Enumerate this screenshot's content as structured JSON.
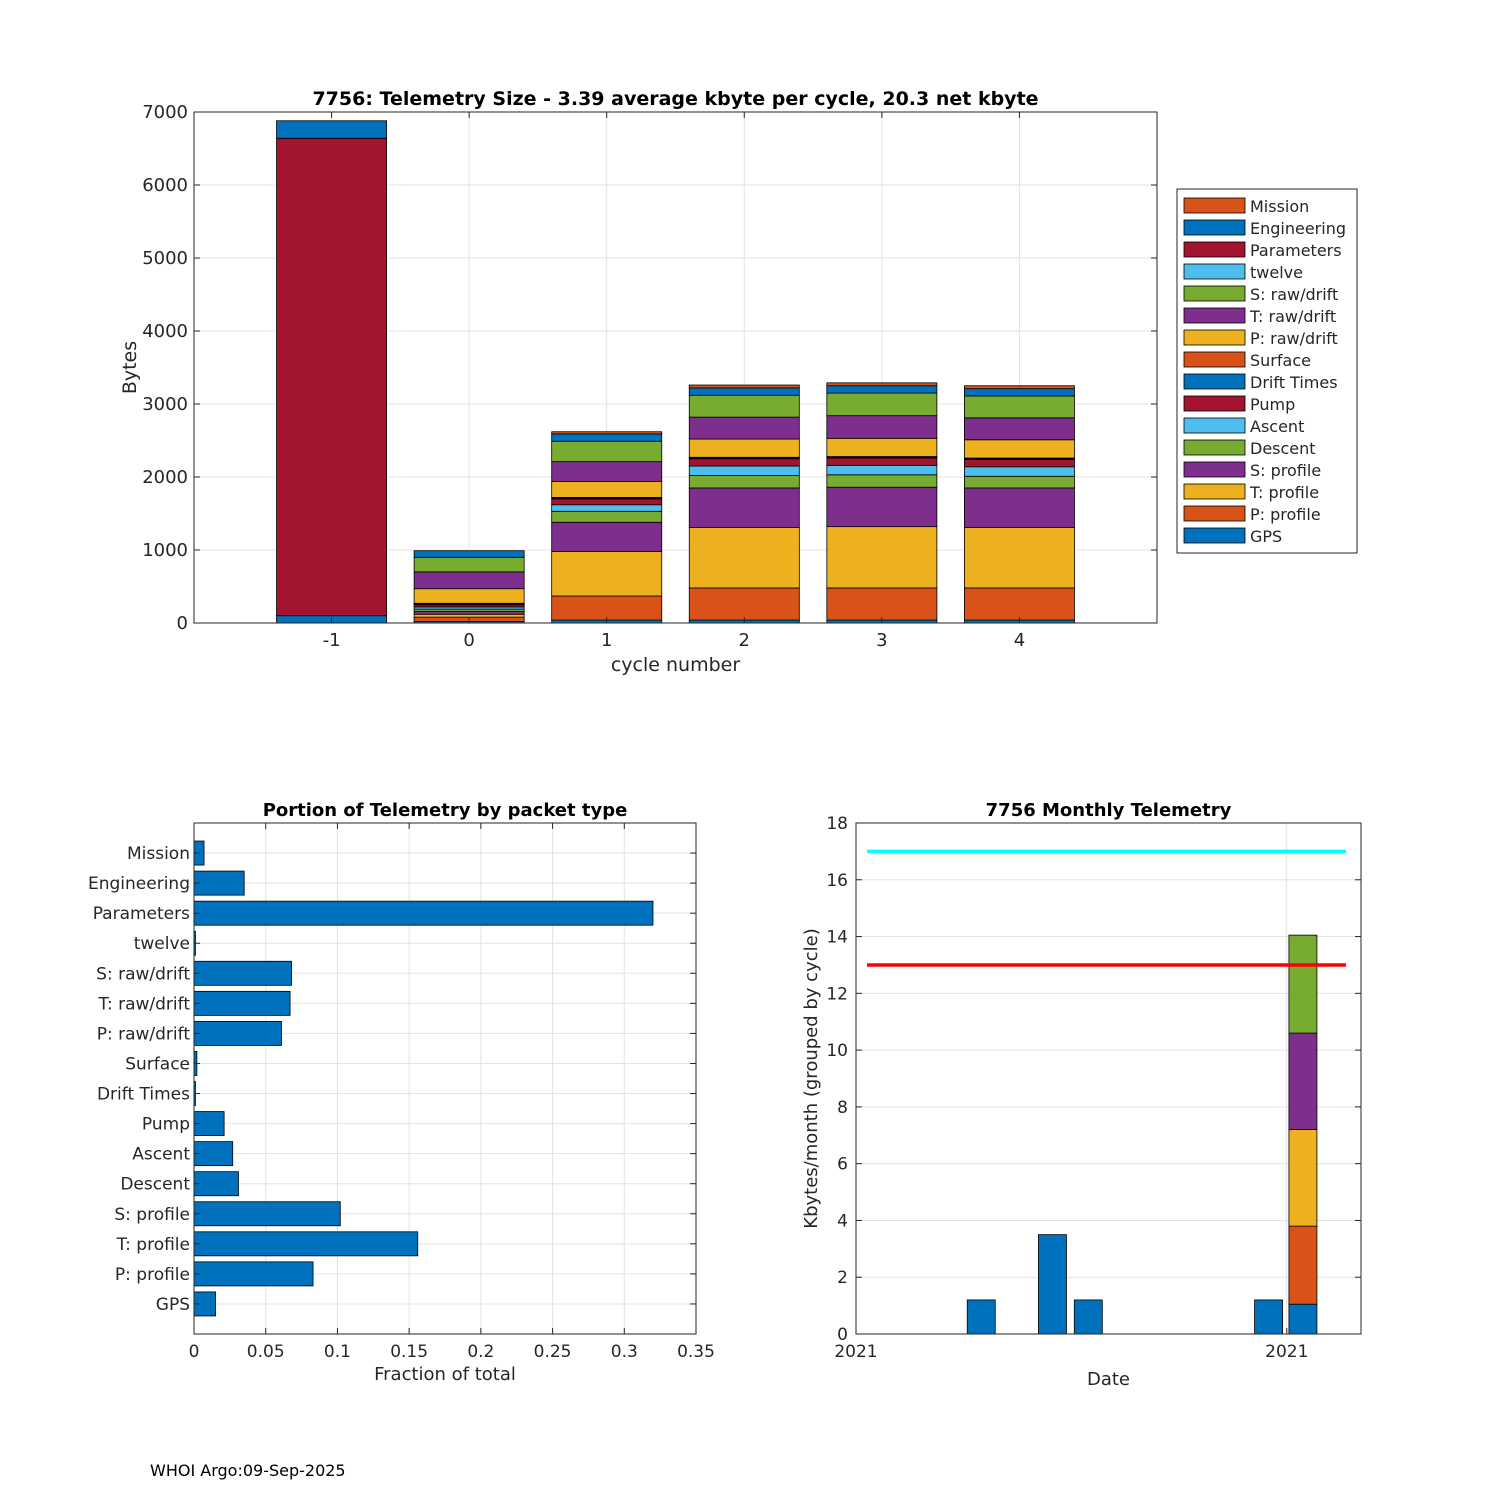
{
  "footer": "WHOI Argo:09-Sep-2025",
  "chart_data": [
    {
      "id": "stacked",
      "type": "bar",
      "stacked": true,
      "title": "7756: Telemetry Size - 3.39 average kbyte per cycle,   20.3 net kbyte",
      "xlabel": "cycle number",
      "ylabel": "Bytes",
      "categories": [
        "-1",
        "0",
        "1",
        "2",
        "3",
        "4"
      ],
      "xlim": [
        -2,
        5
      ],
      "ylim": [
        0,
        7000
      ],
      "yticks": [
        0,
        1000,
        2000,
        3000,
        4000,
        5000,
        6000,
        7000
      ],
      "grid": true,
      "legend_position": "right",
      "series": [
        {
          "name": "GPS",
          "color": "#0072BD",
          "values": [
            100,
            20,
            40,
            40,
            40,
            40
          ]
        },
        {
          "name": "P: profile",
          "color": "#D95319",
          "values": [
            0,
            60,
            330,
            440,
            440,
            440
          ]
        },
        {
          "name": "T: profile",
          "color": "#EDB120",
          "values": [
            0,
            40,
            610,
            830,
            840,
            830
          ]
        },
        {
          "name": "S: profile",
          "color": "#7E2F8E",
          "values": [
            0,
            40,
            400,
            540,
            540,
            540
          ]
        },
        {
          "name": "Descent",
          "color": "#77AC30",
          "values": [
            0,
            30,
            150,
            170,
            170,
            160
          ]
        },
        {
          "name": "Ascent",
          "color": "#4DBEEE",
          "values": [
            0,
            30,
            90,
            130,
            130,
            130
          ]
        },
        {
          "name": "Pump",
          "color": "#A2142F",
          "values": [
            0,
            30,
            80,
            100,
            100,
            100
          ]
        },
        {
          "name": "Drift Times",
          "color": "#0072BD",
          "values": [
            0,
            10,
            10,
            10,
            10,
            10
          ]
        },
        {
          "name": "Surface",
          "color": "#D95319",
          "values": [
            0,
            10,
            10,
            10,
            10,
            10
          ]
        },
        {
          "name": "P: raw/drift",
          "color": "#EDB120",
          "values": [
            0,
            200,
            220,
            250,
            250,
            250
          ]
        },
        {
          "name": "T: raw/drift",
          "color": "#7E2F8E",
          "values": [
            0,
            230,
            270,
            300,
            310,
            300
          ]
        },
        {
          "name": "S: raw/drift",
          "color": "#77AC30",
          "values": [
            0,
            200,
            280,
            300,
            310,
            300
          ]
        },
        {
          "name": "twelve",
          "color": "#4DBEEE",
          "values": [
            0,
            0,
            0,
            0,
            0,
            0
          ]
        },
        {
          "name": "Parameters",
          "color": "#A2142F",
          "values": [
            6540,
            0,
            0,
            0,
            0,
            0
          ]
        },
        {
          "name": "Engineering",
          "color": "#0072BD",
          "values": [
            240,
            90,
            100,
            100,
            100,
            100
          ]
        },
        {
          "name": "Mission",
          "color": "#D95319",
          "values": [
            0,
            0,
            30,
            40,
            40,
            40
          ]
        }
      ]
    },
    {
      "id": "portion",
      "type": "bar",
      "orientation": "horizontal",
      "title": "Portion of Telemetry by packet type",
      "xlabel": "Fraction of total",
      "ylabel": "",
      "color": "#0072BD",
      "categories": [
        "GPS",
        "P: profile",
        "T: profile",
        "S: profile",
        "Descent",
        "Ascent",
        "Pump",
        "Drift Times",
        "Surface",
        "P: raw/drift",
        "T: raw/drift",
        "S: raw/drift",
        "twelve",
        "Parameters",
        "Engineering",
        "Mission"
      ],
      "values": [
        0.015,
        0.083,
        0.156,
        0.102,
        0.031,
        0.027,
        0.021,
        0.001,
        0.002,
        0.061,
        0.067,
        0.068,
        0.001,
        0.32,
        0.035,
        0.007
      ],
      "xlim": [
        0,
        0.35
      ],
      "xticks": [
        0,
        0.05,
        0.1,
        0.15,
        0.2,
        0.25,
        0.3,
        0.35
      ],
      "xticklabels": [
        "0",
        "0.05",
        "0.1",
        "0.15",
        "0.2",
        "0.25",
        "0.3",
        "0.35"
      ],
      "grid": true
    },
    {
      "id": "monthly",
      "type": "bar",
      "title": "7756 Monthly Telemetry",
      "xlabel": "Date",
      "ylabel": "Kbytes/month (grouped by cycle)",
      "xticklabels": [
        "2021",
        "2021"
      ],
      "ylim": [
        0,
        18
      ],
      "yticks": [
        0,
        2,
        4,
        6,
        8,
        10,
        12,
        14,
        16,
        18
      ],
      "grid": true,
      "reference_lines": [
        {
          "value": 17,
          "color": "#00FFFF"
        },
        {
          "value": 13,
          "color": "#FF0000"
        }
      ],
      "bars": [
        {
          "segments": [
            {
              "value": 1.2,
              "color": "#0072BD"
            }
          ]
        },
        {
          "segments": [
            {
              "value": 3.5,
              "color": "#0072BD"
            }
          ]
        },
        {
          "segments": [
            {
              "value": 1.2,
              "color": "#0072BD"
            }
          ]
        },
        {
          "segments": [
            {
              "value": 1.2,
              "color": "#0072BD"
            }
          ]
        },
        {
          "segments": [
            {
              "value": 1.05,
              "color": "#0072BD"
            },
            {
              "value": 2.75,
              "color": "#D95319"
            },
            {
              "value": 3.4,
              "color": "#EDB120"
            },
            {
              "value": 3.4,
              "color": "#7E2F8E"
            },
            {
              "value": 3.45,
              "color": "#77AC30"
            }
          ]
        }
      ]
    }
  ]
}
